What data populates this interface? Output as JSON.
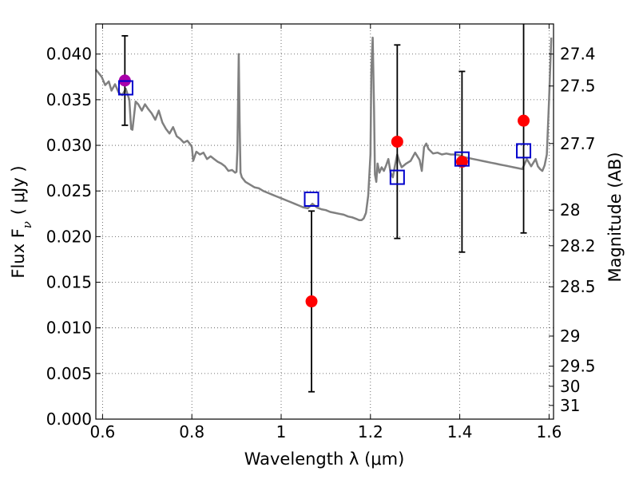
{
  "chart_data": {
    "type": "scatter",
    "title": "",
    "xlabel": "Wavelength  λ (μm)",
    "ylabel": "Flux  F",
    "ylabel_subscript": "ν",
    "ylabel_unit": "( μJy )",
    "y2label": "Magnitude (AB)",
    "xlim": [
      0.585,
      1.61
    ],
    "ylim": [
      0.0,
      0.0433
    ],
    "grid": true,
    "grid_style": "dotted",
    "x_ticks": [
      0.6,
      0.8,
      1.0,
      1.2,
      1.4,
      1.6
    ],
    "x_tick_labels": [
      "0.6",
      "0.8",
      "1",
      "1.2",
      "1.4",
      "1.6"
    ],
    "y_ticks": [
      0.0,
      0.005,
      0.01,
      0.015,
      0.02,
      0.025,
      0.03,
      0.035,
      0.04
    ],
    "y_tick_labels": [
      "0.000",
      "0.005",
      "0.010",
      "0.015",
      "0.020",
      "0.025",
      "0.030",
      "0.035",
      "0.040"
    ],
    "right_axis_ticks": [
      {
        "label": "27.4",
        "flux": 0.04
      },
      {
        "label": "27.5",
        "flux": 0.0365
      },
      {
        "label": "27.7",
        "flux": 0.0302
      },
      {
        "label": "28",
        "flux": 0.0229
      },
      {
        "label": "28.2",
        "flux": 0.019
      },
      {
        "label": "28.5",
        "flux": 0.0145
      },
      {
        "label": "29",
        "flux": 0.0091
      },
      {
        "label": "29.5",
        "flux": 0.0058
      },
      {
        "label": "30",
        "flux": 0.0036
      },
      {
        "label": "31",
        "flux": 0.0015
      }
    ],
    "series": [
      {
        "kind": "line",
        "color": "#808080",
        "x": [
          0.585,
          0.59,
          0.598,
          0.606,
          0.614,
          0.62,
          0.628,
          0.636,
          0.644,
          0.652,
          0.66,
          0.664,
          0.667,
          0.67,
          0.674,
          0.68,
          0.688,
          0.695,
          0.702,
          0.71,
          0.718,
          0.726,
          0.734,
          0.742,
          0.75,
          0.758,
          0.766,
          0.774,
          0.782,
          0.79,
          0.798,
          0.8,
          0.803,
          0.81,
          0.818,
          0.826,
          0.834,
          0.842,
          0.85,
          0.858,
          0.866,
          0.874,
          0.882,
          0.89,
          0.897,
          0.9,
          0.902,
          0.905,
          0.907,
          0.909,
          0.912,
          0.92,
          0.93,
          0.94,
          0.95,
          0.96,
          0.97,
          0.98,
          0.99,
          1.0,
          1.01,
          1.02,
          1.03,
          1.04,
          1.05,
          1.06,
          1.07,
          1.08,
          1.09,
          1.1,
          1.11,
          1.12,
          1.13,
          1.14,
          1.15,
          1.16,
          1.17,
          1.175,
          1.18,
          1.185,
          1.19,
          1.195,
          1.2,
          1.202,
          1.205,
          1.208,
          1.21,
          1.213,
          1.216,
          1.22,
          1.225,
          1.23,
          1.235,
          1.24,
          1.245,
          1.25,
          1.255,
          1.26,
          1.265,
          1.27,
          1.28,
          1.29,
          1.3,
          1.31,
          1.315,
          1.32,
          1.325,
          1.33,
          1.34,
          1.35,
          1.36,
          1.37,
          1.38,
          1.39,
          1.4,
          1.41,
          1.42,
          1.43,
          1.44,
          1.45,
          1.46,
          1.47,
          1.48,
          1.49,
          1.5,
          1.51,
          1.52,
          1.53,
          1.54,
          1.55,
          1.56,
          1.57,
          1.575,
          1.58,
          1.585,
          1.59,
          1.595,
          1.6,
          1.605
        ],
        "y": [
          0.0383,
          0.038,
          0.0375,
          0.0366,
          0.037,
          0.036,
          0.0367,
          0.0358,
          0.0355,
          0.0362,
          0.035,
          0.0318,
          0.0317,
          0.033,
          0.0348,
          0.0345,
          0.0338,
          0.0345,
          0.034,
          0.0335,
          0.0328,
          0.0338,
          0.0325,
          0.0318,
          0.0313,
          0.032,
          0.031,
          0.0307,
          0.0303,
          0.0305,
          0.03,
          0.0298,
          0.0283,
          0.0293,
          0.029,
          0.0292,
          0.0285,
          0.0288,
          0.0285,
          0.0282,
          0.028,
          0.0277,
          0.0272,
          0.0273,
          0.027,
          0.0271,
          0.0295,
          0.04,
          0.0325,
          0.027,
          0.0265,
          0.026,
          0.0257,
          0.0254,
          0.0253,
          0.025,
          0.0248,
          0.0246,
          0.0244,
          0.0242,
          0.024,
          0.0238,
          0.0236,
          0.0234,
          0.0232,
          0.0231,
          0.0236,
          0.0232,
          0.023,
          0.0229,
          0.0227,
          0.0226,
          0.0225,
          0.0224,
          0.0222,
          0.0221,
          0.0219,
          0.0218,
          0.0218,
          0.022,
          0.0226,
          0.0245,
          0.029,
          0.038,
          0.0418,
          0.034,
          0.0268,
          0.026,
          0.028,
          0.027,
          0.0276,
          0.0272,
          0.0278,
          0.0285,
          0.027,
          0.0265,
          0.0278,
          0.029,
          0.0282,
          0.0276,
          0.028,
          0.0283,
          0.0292,
          0.0284,
          0.0272,
          0.0298,
          0.0302,
          0.0296,
          0.0291,
          0.0292,
          0.029,
          0.0291,
          0.029,
          0.029,
          0.0289,
          0.0287,
          0.0286,
          0.0285,
          0.0284,
          0.0283,
          0.0282,
          0.0281,
          0.028,
          0.0279,
          0.0278,
          0.0277,
          0.0276,
          0.0275,
          0.0274,
          0.0285,
          0.0277,
          0.0285,
          0.0277,
          0.0274,
          0.0272,
          0.0278,
          0.029,
          0.035,
          0.0418
        ]
      },
      {
        "kind": "errorbar",
        "marker": "circle",
        "color": "#ff0000",
        "x": [
          0.65,
          1.068,
          1.26,
          1.405,
          1.543
        ],
        "y": [
          0.0371,
          0.0129,
          0.0304,
          0.0282,
          0.0327
        ],
        "yerr": [
          0.0049,
          0.0099,
          0.0106,
          0.0099,
          0.0123
        ],
        "first_point_color": "#aa00aa"
      },
      {
        "kind": "scatter",
        "marker": "open-square",
        "color": "#0000cc",
        "x": [
          0.652,
          1.068,
          1.26,
          1.405,
          1.543
        ],
        "y": [
          0.0363,
          0.0241,
          0.0265,
          0.0285,
          0.0294
        ]
      }
    ]
  }
}
